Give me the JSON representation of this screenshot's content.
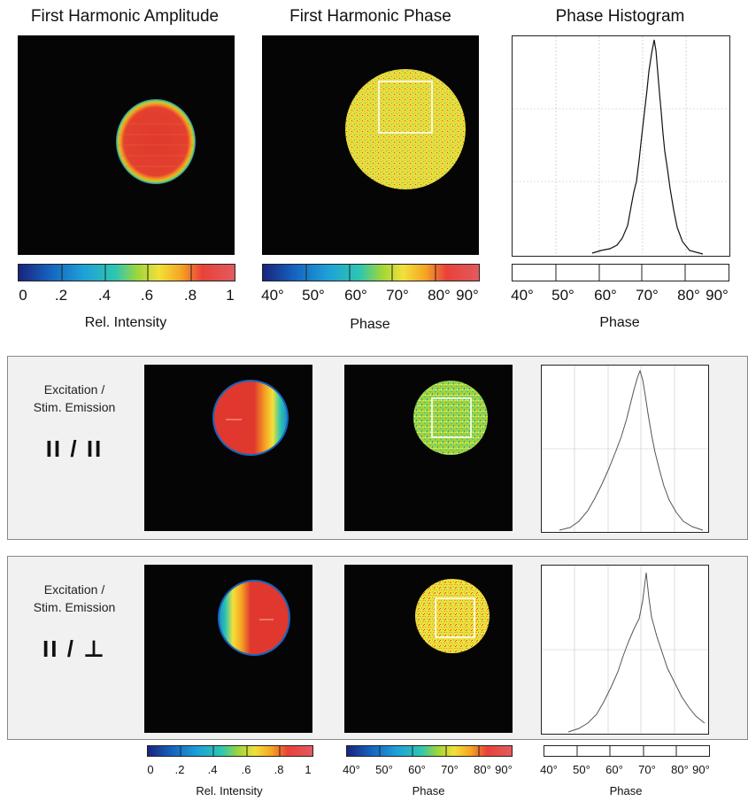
{
  "top": {
    "titles": {
      "amplitude": "First Harmonic Amplitude",
      "phase": "First Harmonic Phase",
      "histogram": "Phase Histogram"
    },
    "intensity_ticks": [
      "0",
      ".2",
      ".4",
      ".6",
      ".8",
      "1"
    ],
    "phase_ticks": [
      "40°",
      "50°",
      "60°",
      "70°",
      "80°",
      "90°"
    ],
    "intensity_label": "Rel. Intensity",
    "phase_label": "Phase",
    "histogram_label": "Phase"
  },
  "rows": [
    {
      "label_line1": "Excitation /",
      "label_line2": "Stim. Emission",
      "polarization": "II / II"
    },
    {
      "label_line1": "Excitation /",
      "label_line2": "Stim. Emission",
      "polarization": "II / ⊥"
    }
  ],
  "bottom": {
    "intensity_ticks": [
      "0",
      ".2",
      ".4",
      ".6",
      ".8",
      "1"
    ],
    "phase_ticks": [
      "40°",
      "50°",
      "60°",
      "70°",
      "80°",
      "90°"
    ],
    "intensity_label": "Rel. Intensity",
    "phase_label": "Phase",
    "histogram_label": "Phase"
  },
  "colors": {
    "colormap": [
      "#1a237e",
      "#1565c0",
      "#1ea0d8",
      "#2ec7b0",
      "#9ed63a",
      "#f3e03a",
      "#f5a623",
      "#e8423b",
      "#e35a5e"
    ],
    "disk_red": "#e23a2e",
    "disk_yellow": "#e9dd3c",
    "panel_bg": "#050505",
    "row_bg": "#f1f1f1"
  }
}
